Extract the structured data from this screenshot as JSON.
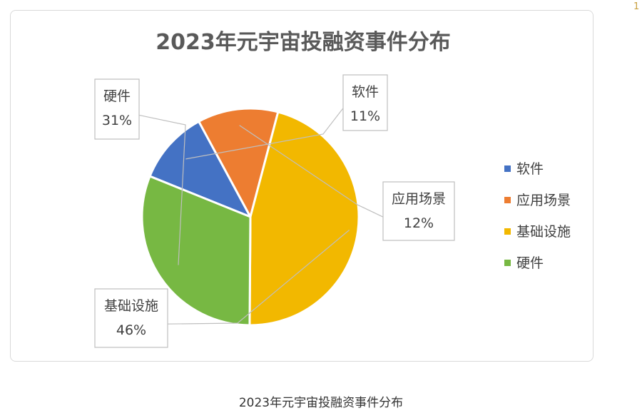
{
  "caption": "2023年元宇宙投融资事件分布",
  "corner_mark": "1",
  "chart_data": {
    "type": "pie",
    "title": "2023年元宇宙投融资事件分布",
    "legend_position": "right",
    "slices": [
      {
        "name": "软件",
        "value": 11,
        "label": "11%",
        "color": "#4472c4"
      },
      {
        "name": "应用场景",
        "value": 12,
        "label": "12%",
        "color": "#ed7d31"
      },
      {
        "name": "基础设施",
        "value": 46,
        "label": "46%",
        "color": "#f2b800"
      },
      {
        "name": "硬件",
        "value": 31,
        "label": "31%",
        "color": "#77b843"
      }
    ]
  }
}
